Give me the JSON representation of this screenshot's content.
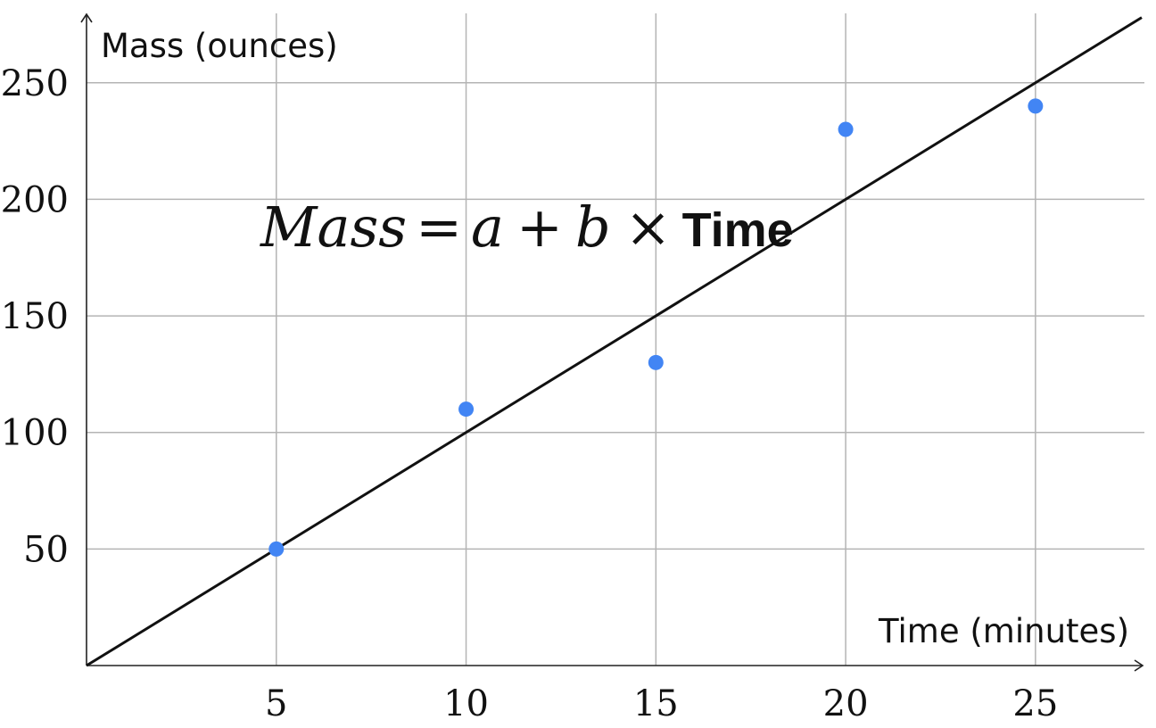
{
  "chart_data": {
    "type": "scatter",
    "title": "",
    "xlabel": "Time (minutes)",
    "ylabel": "Mass (ounces)",
    "xlim": [
      0,
      27.8
    ],
    "ylim": [
      0,
      279
    ],
    "x_ticks": [
      5,
      10,
      15,
      20,
      25
    ],
    "y_ticks": [
      50,
      100,
      150,
      200,
      250
    ],
    "grid": true,
    "points": [
      {
        "x": 5,
        "y": 50
      },
      {
        "x": 10,
        "y": 110
      },
      {
        "x": 15,
        "y": 130
      },
      {
        "x": 20,
        "y": 230
      },
      {
        "x": 25,
        "y": 240
      }
    ],
    "point_color": "#4285f4",
    "fit_line": {
      "intercept": 0,
      "slope": 10,
      "x_range": [
        0,
        27.8
      ]
    },
    "annotation": {
      "parts": [
        "Mass",
        "=",
        "a",
        "+",
        "b",
        "×",
        "Time"
      ]
    }
  }
}
